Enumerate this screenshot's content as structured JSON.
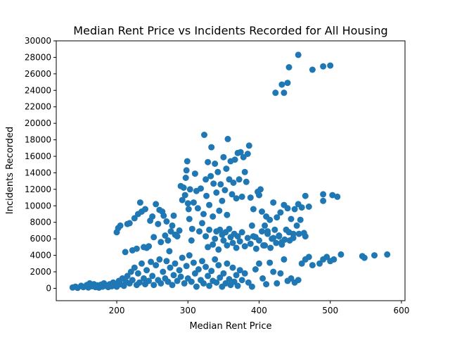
{
  "chart_data": {
    "type": "scatter",
    "title": "Median Rent Price vs Incidents Recorded for All Housing",
    "xlabel": "Median Rent Price",
    "ylabel": "Incidents Recorded",
    "xlim": [
      115,
      605
    ],
    "ylim": [
      -1500,
      30000
    ],
    "xticks": [
      200,
      300,
      400,
      500,
      600
    ],
    "yticks": [
      0,
      2000,
      4000,
      6000,
      8000,
      10000,
      12000,
      14000,
      16000,
      18000,
      20000,
      22000,
      24000,
      26000,
      28000,
      30000
    ],
    "grid": false,
    "marker_color": "#1f77b4",
    "series": [
      {
        "points": [
          [
            138,
            100
          ],
          [
            142,
            200
          ],
          [
            145,
            50
          ],
          [
            150,
            300
          ],
          [
            153,
            150
          ],
          [
            158,
            400
          ],
          [
            160,
            100
          ],
          [
            162,
            600
          ],
          [
            165,
            250
          ],
          [
            168,
            500
          ],
          [
            170,
            150
          ],
          [
            173,
            350
          ],
          [
            175,
            80
          ],
          [
            178,
            450
          ],
          [
            180,
            200
          ],
          [
            182,
            600
          ],
          [
            185,
            300
          ],
          [
            188,
            150
          ],
          [
            190,
            500
          ],
          [
            193,
            250
          ],
          [
            195,
            700
          ],
          [
            198,
            400
          ],
          [
            200,
            200
          ],
          [
            203,
            900
          ],
          [
            205,
            500
          ],
          [
            208,
            1200
          ],
          [
            210,
            300
          ],
          [
            213,
            800
          ],
          [
            215,
            1500
          ],
          [
            218,
            600
          ],
          [
            220,
            2000
          ],
          [
            222,
            1000
          ],
          [
            225,
            2500
          ],
          [
            228,
            400
          ],
          [
            230,
            1800
          ],
          [
            232,
            700
          ],
          [
            235,
            3000
          ],
          [
            238,
            1200
          ],
          [
            240,
            500
          ],
          [
            242,
            2200
          ],
          [
            245,
            900
          ],
          [
            248,
            3200
          ],
          [
            250,
            1500
          ],
          [
            252,
            400
          ],
          [
            255,
            2800
          ],
          [
            258,
            1000
          ],
          [
            260,
            3500
          ],
          [
            262,
            600
          ],
          [
            265,
            2000
          ],
          [
            268,
            1200
          ],
          [
            270,
            3300
          ],
          [
            272,
            800
          ],
          [
            275,
            2500
          ],
          [
            278,
            400
          ],
          [
            280,
            1600
          ],
          [
            282,
            3000
          ],
          [
            285,
            900
          ],
          [
            288,
            2200
          ],
          [
            290,
            1400
          ],
          [
            292,
            3700
          ],
          [
            295,
            600
          ],
          [
            298,
            2700
          ],
          [
            300,
            1200
          ],
          [
            302,
            4000
          ],
          [
            305,
            800
          ],
          [
            308,
            3100
          ],
          [
            310,
            1800
          ],
          [
            312,
            200
          ],
          [
            315,
            2300
          ],
          [
            318,
            1000
          ],
          [
            320,
            3300
          ],
          [
            322,
            600
          ],
          [
            325,
            2600
          ],
          [
            328,
            1500
          ],
          [
            330,
            300
          ],
          [
            333,
            2100
          ],
          [
            335,
            900
          ],
          [
            338,
            3500
          ],
          [
            340,
            700
          ],
          [
            343,
            2800
          ],
          [
            345,
            1300
          ],
          [
            348,
            200
          ],
          [
            350,
            1800
          ],
          [
            353,
            600
          ],
          [
            355,
            3000
          ],
          [
            358,
            1100
          ],
          [
            360,
            400
          ],
          [
            363,
            2500
          ],
          [
            365,
            800
          ],
          [
            368,
            1600
          ],
          [
            370,
            300
          ],
          [
            373,
            2200
          ],
          [
            376,
            1000
          ],
          [
            380,
            1800
          ],
          [
            385,
            700
          ],
          [
            390,
            200
          ],
          [
            395,
            2300
          ],
          [
            400,
            3000
          ],
          [
            405,
            1200
          ],
          [
            410,
            500
          ],
          [
            415,
            3100
          ],
          [
            420,
            2000
          ],
          [
            425,
            600
          ],
          [
            430,
            1800
          ],
          [
            435,
            3500
          ],
          [
            440,
            900
          ],
          [
            445,
            1200
          ],
          [
            450,
            700
          ],
          [
            455,
            1000
          ],
          [
            460,
            3000
          ],
          [
            465,
            3500
          ],
          [
            470,
            3800
          ],
          [
            475,
            2800
          ],
          [
            485,
            3000
          ],
          [
            490,
            3500
          ],
          [
            495,
            3800
          ],
          [
            500,
            3300
          ],
          [
            505,
            3500
          ],
          [
            515,
            4100
          ],
          [
            545,
            3900
          ],
          [
            548,
            3700
          ],
          [
            562,
            4000
          ],
          [
            580,
            4100
          ],
          [
            200,
            6800
          ],
          [
            202,
            7300
          ],
          [
            205,
            7600
          ],
          [
            212,
            4400
          ],
          [
            215,
            7800
          ],
          [
            218,
            7900
          ],
          [
            222,
            4600
          ],
          [
            225,
            8500
          ],
          [
            228,
            4800
          ],
          [
            230,
            9000
          ],
          [
            233,
            10400
          ],
          [
            235,
            9300
          ],
          [
            238,
            5000
          ],
          [
            240,
            9600
          ],
          [
            242,
            4900
          ],
          [
            245,
            5100
          ],
          [
            247,
            8200
          ],
          [
            250,
            8700
          ],
          [
            252,
            6200
          ],
          [
            255,
            10200
          ],
          [
            258,
            7800
          ],
          [
            260,
            9500
          ],
          [
            262,
            5600
          ],
          [
            264,
            9300
          ],
          [
            266,
            8800
          ],
          [
            268,
            6400
          ],
          [
            270,
            8100
          ],
          [
            272,
            5800
          ],
          [
            274,
            4500
          ],
          [
            276,
            6900
          ],
          [
            278,
            7600
          ],
          [
            280,
            8800
          ],
          [
            282,
            6500
          ],
          [
            285,
            6300
          ],
          [
            288,
            7000
          ],
          [
            290,
            12400
          ],
          [
            292,
            10700
          ],
          [
            294,
            12200
          ],
          [
            296,
            11300
          ],
          [
            297,
            13400
          ],
          [
            298,
            14300
          ],
          [
            299,
            15400
          ],
          [
            300,
            10300
          ],
          [
            301,
            9600
          ],
          [
            302,
            8400
          ],
          [
            303,
            12000
          ],
          [
            305,
            5800
          ],
          [
            306,
            7200
          ],
          [
            308,
            10400
          ],
          [
            310,
            13900
          ],
          [
            312,
            11800
          ],
          [
            314,
            9700
          ],
          [
            316,
            6900
          ],
          [
            318,
            12100
          ],
          [
            320,
            7900
          ],
          [
            322,
            9000
          ],
          [
            323,
            18600
          ],
          [
            325,
            13200
          ],
          [
            326,
            11200
          ],
          [
            328,
            15300
          ],
          [
            330,
            10100
          ],
          [
            332,
            13600
          ],
          [
            333,
            17100
          ],
          [
            335,
            8700
          ],
          [
            336,
            12700
          ],
          [
            338,
            15100
          ],
          [
            340,
            11600
          ],
          [
            342,
            14100
          ],
          [
            344,
            9400
          ],
          [
            346,
            12600
          ],
          [
            348,
            10600
          ],
          [
            350,
            15900
          ],
          [
            352,
            11900
          ],
          [
            354,
            14500
          ],
          [
            355,
            8900
          ],
          [
            356,
            18100
          ],
          [
            358,
            13200
          ],
          [
            360,
            15400
          ],
          [
            362,
            11400
          ],
          [
            364,
            12800
          ],
          [
            366,
            15600
          ],
          [
            368,
            10900
          ],
          [
            370,
            16400
          ],
          [
            372,
            13200
          ],
          [
            374,
            16500
          ],
          [
            376,
            11100
          ],
          [
            378,
            15900
          ],
          [
            380,
            14100
          ],
          [
            382,
            12900
          ],
          [
            384,
            16300
          ],
          [
            386,
            17300
          ],
          [
            388,
            11000
          ],
          [
            390,
            7600
          ],
          [
            392,
            9600
          ],
          [
            395,
            6200
          ],
          [
            398,
            11700
          ],
          [
            400,
            11300
          ],
          [
            402,
            12000
          ],
          [
            404,
            9300
          ],
          [
            406,
            5200
          ],
          [
            408,
            7600
          ],
          [
            410,
            8700
          ],
          [
            412,
            6900
          ],
          [
            415,
            8300
          ],
          [
            418,
            6000
          ],
          [
            420,
            10400
          ],
          [
            422,
            7100
          ],
          [
            425,
            8600
          ],
          [
            428,
            6400
          ],
          [
            430,
            9200
          ],
          [
            432,
            5600
          ],
          [
            435,
            10100
          ],
          [
            438,
            7100
          ],
          [
            440,
            9700
          ],
          [
            443,
            5800
          ],
          [
            445,
            8400
          ],
          [
            448,
            6600
          ],
          [
            450,
            9600
          ],
          [
            453,
            7600
          ],
          [
            455,
            10200
          ],
          [
            458,
            8300
          ],
          [
            460,
            9800
          ],
          [
            463,
            6700
          ],
          [
            465,
            11200
          ],
          [
            470,
            9900
          ],
          [
            490,
            10600
          ],
          [
            490,
            11400
          ],
          [
            503,
            11300
          ],
          [
            510,
            11100
          ],
          [
            325,
            6300
          ],
          [
            328,
            5000
          ],
          [
            330,
            7100
          ],
          [
            335,
            5300
          ],
          [
            338,
            6000
          ],
          [
            340,
            6900
          ],
          [
            343,
            4700
          ],
          [
            345,
            7100
          ],
          [
            348,
            6500
          ],
          [
            350,
            5800
          ],
          [
            353,
            6800
          ],
          [
            355,
            5200
          ],
          [
            358,
            7200
          ],
          [
            360,
            6200
          ],
          [
            363,
            5500
          ],
          [
            365,
            6600
          ],
          [
            368,
            4900
          ],
          [
            370,
            6300
          ],
          [
            373,
            5700
          ],
          [
            376,
            6800
          ],
          [
            380,
            5100
          ],
          [
            384,
            6100
          ],
          [
            388,
            5400
          ],
          [
            392,
            6300
          ],
          [
            396,
            4800
          ],
          [
            400,
            5800
          ],
          [
            404,
            6900
          ],
          [
            408,
            5200
          ],
          [
            412,
            6600
          ],
          [
            416,
            4900
          ],
          [
            420,
            6100
          ],
          [
            424,
            5500
          ],
          [
            428,
            6300
          ],
          [
            432,
            5300
          ],
          [
            436,
            5900
          ],
          [
            442,
            6800
          ],
          [
            448,
            6100
          ],
          [
            456,
            6600
          ],
          [
            465,
            6300
          ],
          [
            423,
            23700
          ],
          [
            432,
            24700
          ],
          [
            435,
            23700
          ],
          [
            440,
            24900
          ],
          [
            442,
            26800
          ],
          [
            455,
            28300
          ],
          [
            475,
            26500
          ],
          [
            490,
            26900
          ],
          [
            500,
            27000
          ]
        ]
      }
    ]
  }
}
